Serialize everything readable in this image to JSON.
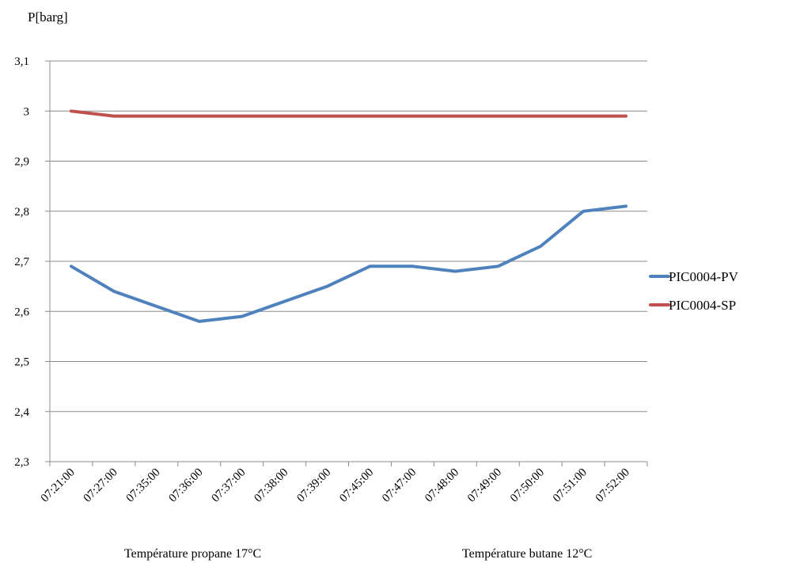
{
  "chart_data": {
    "type": "line",
    "title": "",
    "ylabel": "P[barg]",
    "xlabel": "",
    "ylim": [
      2.3,
      3.1
    ],
    "y_ticks": [
      "2,3",
      "2,4",
      "2,5",
      "2,6",
      "2,7",
      "2,8",
      "2,9",
      "3",
      "3,1"
    ],
    "y_tick_values": [
      2.3,
      2.4,
      2.5,
      2.6,
      2.7,
      2.8,
      2.9,
      3.0,
      3.1
    ],
    "grid": "horizontal",
    "legend_position": "right",
    "categories": [
      "07:21:00",
      "07:27:00",
      "07:35:00",
      "07:36:00",
      "07:37:00",
      "07:38:00",
      "07:39:00",
      "07:45:00",
      "07:47:00",
      "07:48:00",
      "07:49:00",
      "07:50:00",
      "07:51:00",
      "07:52:00"
    ],
    "series": [
      {
        "name": "PIC0004-PV",
        "color": "#4F81BD",
        "values": [
          2.69,
          2.64,
          2.61,
          2.58,
          2.59,
          2.62,
          2.65,
          2.69,
          2.69,
          2.68,
          2.69,
          2.73,
          2.8,
          2.81
        ]
      },
      {
        "name": "PIC0004-SP",
        "color": "#C0504D",
        "values": [
          3.0,
          2.99,
          2.99,
          2.99,
          2.99,
          2.99,
          2.99,
          2.99,
          2.99,
          2.99,
          2.99,
          2.99,
          2.99,
          2.99
        ]
      }
    ],
    "annotations": [
      "Température propane 17°C",
      "Température butane 12°C"
    ]
  }
}
